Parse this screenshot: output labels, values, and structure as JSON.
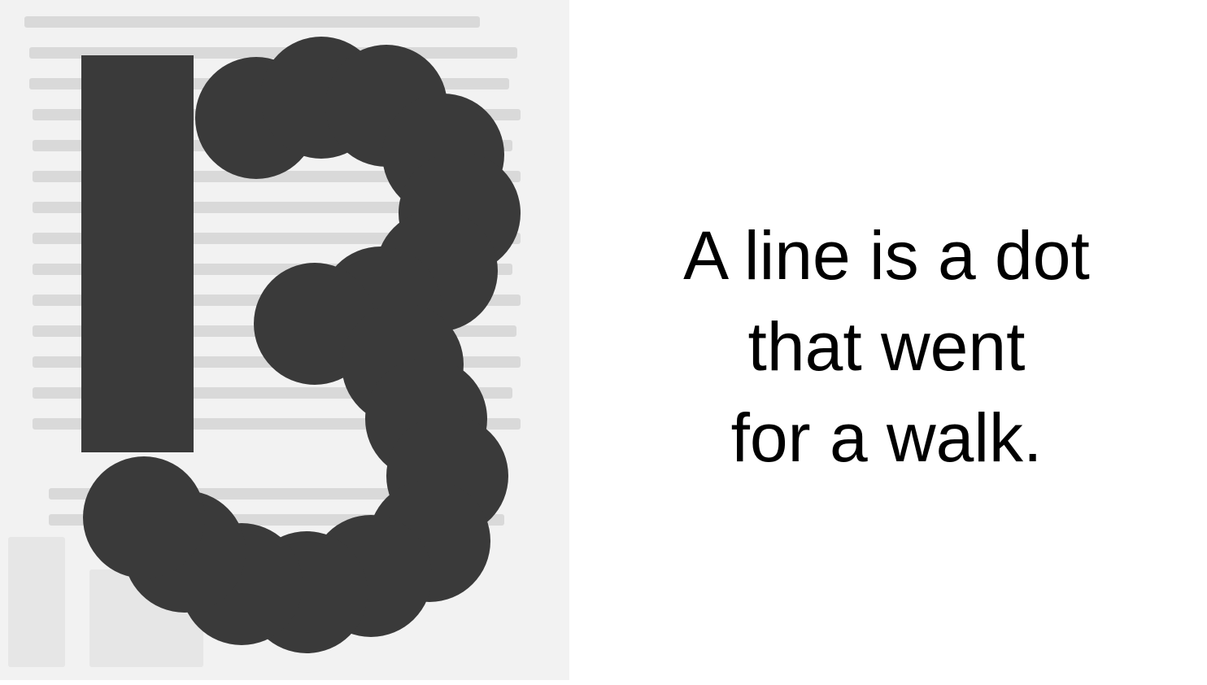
{
  "colors": {
    "ink": "#3a3a3a",
    "paper": "#f2f2f2",
    "text_faint": "#d6d6d6",
    "caption_text": "#000000"
  },
  "quote": {
    "lines": [
      "A line is a dot",
      "that went",
      "for a walk."
    ]
  }
}
